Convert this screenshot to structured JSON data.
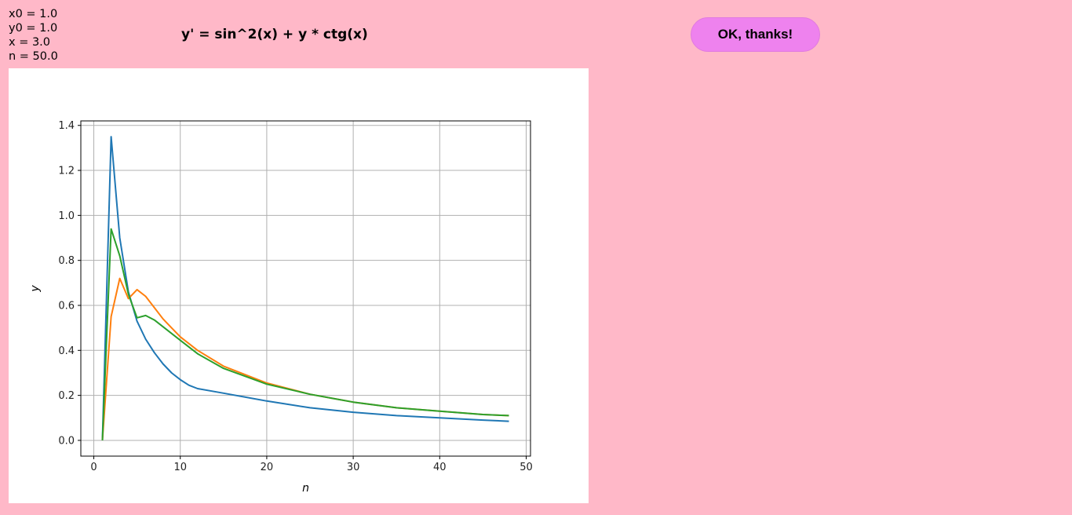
{
  "params": {
    "x0": "x0 = 1.0",
    "y0": "y0 = 1.0",
    "x": "x = 3.0",
    "n": "n = 50.0"
  },
  "equation": "y' = sin^2(x) + y * ctg(x)",
  "ok_button_label": "OK, thanks!",
  "colors": {
    "background": "#ffb8c8",
    "button": "#ee82ee",
    "series": [
      "#1f77b4",
      "#ff7f0e",
      "#2ca02c"
    ]
  },
  "chart_data": {
    "type": "line",
    "xlabel": "n",
    "ylabel": "y",
    "xlim": [
      -1.5,
      50.5
    ],
    "ylim": [
      -0.07,
      1.42
    ],
    "xticks": [
      0,
      10,
      20,
      30,
      40,
      50
    ],
    "yticks": [
      0.0,
      0.2,
      0.4,
      0.6,
      0.8,
      1.0,
      1.2,
      1.4
    ],
    "xtick_labels": [
      "0",
      "10",
      "20",
      "30",
      "40",
      "50"
    ],
    "ytick_labels": [
      "0.0",
      "0.2",
      "0.4",
      "0.6",
      "0.8",
      "1.0",
      "1.2",
      "1.4"
    ],
    "grid": true,
    "series": [
      {
        "color": "#1f77b4",
        "x": [
          1,
          2,
          3,
          4,
          5,
          6,
          7,
          8,
          9,
          10,
          11,
          12,
          15,
          20,
          25,
          30,
          35,
          40,
          45,
          48
        ],
        "y": [
          0.0,
          1.35,
          0.9,
          0.66,
          0.53,
          0.45,
          0.39,
          0.34,
          0.3,
          0.27,
          0.245,
          0.23,
          0.21,
          0.175,
          0.145,
          0.125,
          0.11,
          0.1,
          0.09,
          0.085
        ]
      },
      {
        "color": "#ff7f0e",
        "x": [
          1,
          2,
          3,
          4,
          5,
          6,
          7,
          8,
          9,
          10,
          12,
          15,
          20,
          25,
          30,
          35,
          40,
          45,
          48
        ],
        "y": [
          0.0,
          0.55,
          0.72,
          0.63,
          0.67,
          0.64,
          0.59,
          0.54,
          0.5,
          0.46,
          0.4,
          0.33,
          0.255,
          0.205,
          0.17,
          0.145,
          0.13,
          0.115,
          0.11
        ]
      },
      {
        "color": "#2ca02c",
        "x": [
          1,
          2,
          3,
          4,
          5,
          6,
          7,
          8,
          9,
          10,
          12,
          15,
          20,
          25,
          30,
          35,
          40,
          45,
          48
        ],
        "y": [
          0.0,
          0.94,
          0.82,
          0.65,
          0.545,
          0.555,
          0.535,
          0.505,
          0.475,
          0.445,
          0.385,
          0.32,
          0.25,
          0.205,
          0.17,
          0.145,
          0.13,
          0.115,
          0.11
        ]
      }
    ]
  }
}
